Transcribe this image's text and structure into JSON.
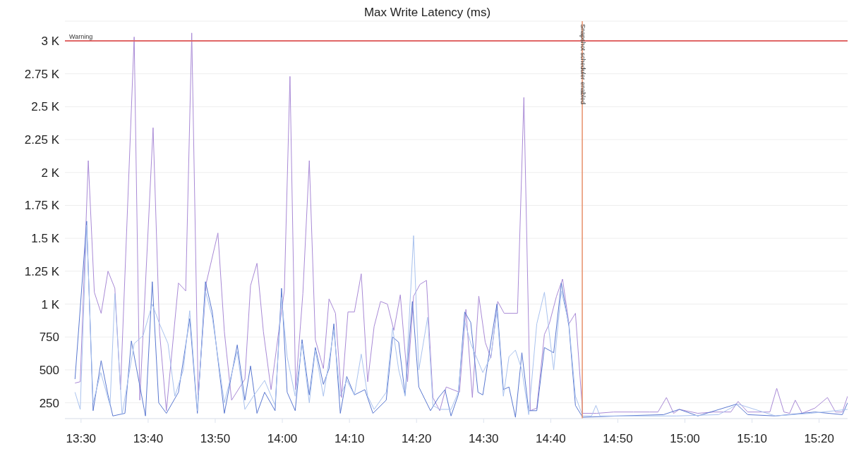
{
  "chart_data": {
    "type": "line",
    "title": "Max Write Latency (ms)",
    "xlim": [
      13.46,
      15.404
    ],
    "ylim": [
      130,
      3150
    ],
    "xticks": [
      {
        "value": 13.5,
        "label": "13:30"
      },
      {
        "value": 13.6667,
        "label": "13:40"
      },
      {
        "value": 13.8333,
        "label": "13:50"
      },
      {
        "value": 14,
        "label": "14:00"
      },
      {
        "value": 14.1667,
        "label": "14:10"
      },
      {
        "value": 14.3333,
        "label": "14:20"
      },
      {
        "value": 14.5,
        "label": "14:30"
      },
      {
        "value": 14.6667,
        "label": "14:40"
      },
      {
        "value": 14.8333,
        "label": "14:50"
      },
      {
        "value": 15,
        "label": "15:00"
      },
      {
        "value": 15.1667,
        "label": "15:10"
      },
      {
        "value": 15.3333,
        "label": "15:20"
      }
    ],
    "yticks": [
      250,
      500,
      750,
      {
        "value": 1000,
        "label": "1 K"
      },
      {
        "value": 1250,
        "label": "1.25 K"
      },
      {
        "value": 1500,
        "label": "1.5 K"
      },
      {
        "value": 1750,
        "label": "1.75 K"
      },
      {
        "value": 2000,
        "label": "2 K"
      },
      {
        "value": 2250,
        "label": "2.25 K"
      },
      {
        "value": 2500,
        "label": "2.5 K"
      },
      {
        "value": 2750,
        "label": "2.75 K"
      },
      {
        "value": 3000,
        "label": "3 K"
      }
    ],
    "grid": "y",
    "marker": "none",
    "line_style": "solid",
    "ref_lines": [
      {
        "axis": "y",
        "value": 3000,
        "label": "Warning",
        "color": "#e06666"
      },
      {
        "axis": "x",
        "value": 14.745,
        "label": "Snapshot scheduler enabled",
        "color": "#e8906a"
      }
    ],
    "series": [
      {
        "color": "#a98ad6",
        "x": [
          13.485,
          13.498,
          13.518,
          13.533,
          13.55,
          13.567,
          13.584,
          13.598,
          13.632,
          13.646,
          13.679,
          13.695,
          13.712,
          13.742,
          13.76,
          13.775,
          13.791,
          13.811,
          13.84,
          13.856,
          13.874,
          13.907,
          13.921,
          13.937,
          13.953,
          13.972,
          13.991,
          14.005,
          14.019,
          14.033,
          14.051,
          14.067,
          14.082,
          14.102,
          14.116,
          14.132,
          14.147,
          14.163,
          14.179,
          14.196,
          14.212,
          14.228,
          14.244,
          14.261,
          14.277,
          14.293,
          14.311,
          14.326,
          14.342,
          14.358,
          14.374,
          14.391,
          14.407,
          14.44,
          14.456,
          14.472,
          14.488,
          14.504,
          14.518,
          14.535,
          14.551,
          14.584,
          14.6,
          14.616,
          14.632,
          14.651,
          14.663,
          14.681,
          14.696,
          14.712,
          14.728,
          14.746,
          14.781,
          14.823,
          14.872,
          14.912,
          14.933,
          14.954,
          14.972,
          14.986,
          15.032,
          15.072,
          15.114,
          15.132,
          15.156,
          15.211,
          15.228,
          15.246,
          15.26,
          15.274,
          15.291,
          15.323,
          15.354,
          15.374,
          15.391,
          15.404
        ],
        "values": [
          400,
          410,
          2090,
          1090,
          930,
          1250,
          1120,
          350,
          3030,
          270,
          2340,
          790,
          190,
          1160,
          1100,
          3060,
          310,
          1160,
          1540,
          790,
          270,
          430,
          1140,
          1310,
          790,
          350,
          790,
          1100,
          2730,
          350,
          1080,
          2090,
          730,
          510,
          1040,
          930,
          290,
          940,
          940,
          1230,
          410,
          830,
          1020,
          1000,
          800,
          1070,
          410,
          1060,
          1150,
          1180,
          290,
          190,
          370,
          330,
          960,
          290,
          1060,
          710,
          590,
          1020,
          930,
          930,
          2570,
          190,
          210,
          770,
          850,
          1060,
          1190,
          850,
          930,
          170,
          170,
          180,
          180,
          180,
          180,
          290,
          170,
          200,
          170,
          180,
          180,
          260,
          180,
          180,
          360,
          180,
          170,
          270,
          170,
          210,
          290,
          180,
          180,
          300
        ]
      },
      {
        "color": "#5a78d0",
        "x": [
          13.485,
          13.514,
          13.53,
          13.55,
          13.567,
          13.579,
          13.609,
          13.625,
          13.66,
          13.677,
          13.693,
          13.712,
          13.742,
          13.77,
          13.789,
          13.809,
          13.826,
          13.856,
          13.888,
          13.907,
          13.921,
          13.937,
          13.956,
          13.982,
          13.998,
          14.012,
          14.032,
          14.049,
          14.067,
          14.082,
          14.102,
          14.116,
          14.128,
          14.144,
          14.16,
          14.179,
          14.205,
          14.225,
          14.258,
          14.274,
          14.289,
          14.305,
          14.323,
          14.339,
          14.368,
          14.388,
          14.404,
          14.419,
          14.437,
          14.453,
          14.468,
          14.486,
          14.498,
          14.518,
          14.533,
          14.549,
          14.563,
          14.579,
          14.595,
          14.612,
          14.632,
          14.651,
          14.674,
          14.693,
          14.712,
          14.728,
          14.746,
          14.837,
          14.947,
          14.986,
          15.032,
          15.128,
          15.156,
          15.225,
          15.323,
          15.391,
          15.404
        ],
        "values": [
          430,
          1630,
          190,
          570,
          310,
          150,
          170,
          720,
          150,
          1170,
          250,
          170,
          330,
          890,
          170,
          1170,
          940,
          170,
          690,
          270,
          530,
          170,
          330,
          190,
          1120,
          330,
          190,
          730,
          310,
          670,
          390,
          510,
          850,
          170,
          450,
          310,
          350,
          170,
          270,
          750,
          710,
          310,
          1020,
          370,
          190,
          290,
          350,
          150,
          310,
          940,
          860,
          330,
          310,
          710,
          1000,
          350,
          370,
          140,
          630,
          190,
          190,
          670,
          630,
          1160,
          830,
          230,
          140,
          150,
          160,
          200,
          150,
          240,
          160,
          150,
          180,
          160,
          250
        ]
      },
      {
        "color": "#a9c2ee",
        "x": [
          13.485,
          13.498,
          13.514,
          13.53,
          13.549,
          13.572,
          13.584,
          13.602,
          13.632,
          13.654,
          13.677,
          13.695,
          13.716,
          13.733,
          13.754,
          13.77,
          13.789,
          13.809,
          13.826,
          13.856,
          13.888,
          13.907,
          13.928,
          13.956,
          13.982,
          13.998,
          14.012,
          14.032,
          14.049,
          14.067,
          14.082,
          14.102,
          14.128,
          14.144,
          14.16,
          14.179,
          14.196,
          14.212,
          14.228,
          14.258,
          14.274,
          14.289,
          14.305,
          14.326,
          14.339,
          14.361,
          14.374,
          14.391,
          14.419,
          14.437,
          14.453,
          14.468,
          14.498,
          14.518,
          14.533,
          14.549,
          14.563,
          14.579,
          14.595,
          14.612,
          14.632,
          14.651,
          14.674,
          14.693,
          14.712,
          14.728,
          14.746,
          14.768,
          14.779,
          14.789,
          14.874,
          14.979,
          15.084,
          15.132,
          15.225,
          15.312,
          15.404
        ],
        "values": [
          330,
          200,
          1600,
          250,
          480,
          230,
          1080,
          160,
          700,
          760,
          1000,
          850,
          700,
          300,
          500,
          950,
          190,
          1100,
          900,
          250,
          640,
          200,
          300,
          420,
          230,
          1050,
          600,
          300,
          700,
          250,
          650,
          300,
          800,
          300,
          420,
          310,
          620,
          300,
          200,
          330,
          820,
          500,
          300,
          1520,
          500,
          900,
          230,
          200,
          200,
          330,
          870,
          700,
          480,
          600,
          950,
          300,
          600,
          650,
          500,
          160,
          850,
          1090,
          500,
          1100,
          850,
          300,
          150,
          150,
          230,
          150,
          150,
          150,
          160,
          240,
          150,
          170,
          200
        ]
      }
    ]
  }
}
